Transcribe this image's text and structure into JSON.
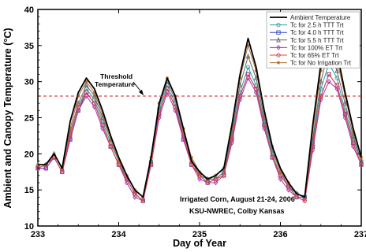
{
  "chart_data": {
    "type": "line",
    "title": "",
    "xlabel": "Day of Year",
    "ylabel": "Ambient and Canopy Temperature (°C)",
    "xlim": [
      233,
      237
    ],
    "ylim": [
      10,
      40
    ],
    "xticks": [
      233,
      234,
      235,
      236,
      237
    ],
    "yticks": [
      10,
      15,
      20,
      25,
      30,
      35,
      40
    ],
    "grid": false,
    "legend_position": "top-right",
    "threshold": {
      "value": 28,
      "label_line1": "Threshold",
      "label_line2": "Temperature",
      "color": "#cc2222"
    },
    "annotations": [
      "Irrigated Corn, August 21-24, 2006",
      "KSU-NWREC, Colby Kansas"
    ],
    "series": [
      {
        "name": "Ambient Temperature",
        "color": "#000000",
        "marker": "none",
        "x": [
          233.0,
          233.1,
          233.2,
          233.3,
          233.4,
          233.5,
          233.6,
          233.7,
          233.8,
          233.9,
          234.0,
          234.1,
          234.2,
          234.3,
          234.4,
          234.5,
          234.6,
          234.7,
          234.8,
          234.9,
          235.0,
          235.1,
          235.2,
          235.3,
          235.4,
          235.5,
          235.6,
          235.7,
          235.8,
          235.9,
          236.0,
          236.1,
          236.2,
          236.3,
          236.4,
          236.5,
          236.6,
          236.7,
          236.8,
          236.9,
          237.0
        ],
        "y": [
          18.5,
          18.5,
          20.0,
          18.0,
          24.5,
          28.5,
          30.5,
          29.0,
          26.0,
          22.5,
          19.5,
          17.0,
          15.0,
          14.0,
          19.5,
          27.0,
          30.5,
          28.0,
          23.5,
          19.0,
          17.5,
          16.5,
          17.0,
          18.0,
          24.0,
          31.0,
          36.0,
          32.0,
          26.0,
          21.0,
          18.0,
          16.0,
          14.5,
          14.0,
          24.0,
          32.5,
          38.0,
          34.0,
          28.5,
          23.5,
          19.5
        ]
      },
      {
        "name": "Tc for 2.5 h TTT Trt",
        "color": "#2aa0a0",
        "marker": "circle",
        "x": [
          233.0,
          233.1,
          233.2,
          233.3,
          233.4,
          233.5,
          233.6,
          233.7,
          233.8,
          233.9,
          234.0,
          234.1,
          234.2,
          234.3,
          234.4,
          234.5,
          234.6,
          234.7,
          234.8,
          234.9,
          235.0,
          235.1,
          235.2,
          235.3,
          235.4,
          235.5,
          235.6,
          235.7,
          235.8,
          235.9,
          236.0,
          236.1,
          236.2,
          236.3,
          236.4,
          236.5,
          236.6,
          236.7,
          236.8,
          236.9,
          237.0
        ],
        "y": [
          18.0,
          18.5,
          19.5,
          17.5,
          22.5,
          26.5,
          29.0,
          27.5,
          24.5,
          21.5,
          19.0,
          16.5,
          14.5,
          13.5,
          19.0,
          26.0,
          29.5,
          27.0,
          22.5,
          18.5,
          17.0,
          16.5,
          16.5,
          17.5,
          22.5,
          28.5,
          32.0,
          29.5,
          24.5,
          20.0,
          17.0,
          15.5,
          14.5,
          14.0,
          21.5,
          29.0,
          32.5,
          30.5,
          26.0,
          22.0,
          19.0
        ]
      },
      {
        "name": "Tc for 4.0 h TTT Trt",
        "color": "#3344cc",
        "marker": "square",
        "x": [
          233.0,
          233.1,
          233.2,
          233.3,
          233.4,
          233.5,
          233.6,
          233.7,
          233.8,
          233.9,
          234.0,
          234.1,
          234.2,
          234.3,
          234.4,
          234.5,
          234.6,
          234.7,
          234.8,
          234.9,
          235.0,
          235.1,
          235.2,
          235.3,
          235.4,
          235.5,
          235.6,
          235.7,
          235.8,
          235.9,
          236.0,
          236.1,
          236.2,
          236.3,
          236.4,
          236.5,
          236.6,
          236.7,
          236.8,
          236.9,
          237.0
        ],
        "y": [
          18.0,
          18.0,
          19.5,
          17.5,
          22.0,
          26.0,
          28.5,
          27.0,
          24.0,
          21.0,
          18.5,
          16.5,
          14.5,
          13.5,
          18.5,
          25.5,
          29.0,
          26.5,
          22.0,
          18.5,
          17.0,
          16.0,
          16.5,
          17.0,
          22.0,
          28.0,
          31.0,
          29.0,
          24.0,
          19.5,
          17.0,
          15.5,
          14.0,
          14.0,
          21.0,
          28.0,
          31.0,
          29.5,
          25.5,
          21.5,
          18.5
        ]
      },
      {
        "name": "Tc for 5.5 h TTT Trt",
        "color": "#666666",
        "marker": "triangle",
        "x": [
          233.0,
          233.1,
          233.2,
          233.3,
          233.4,
          233.5,
          233.6,
          233.7,
          233.8,
          233.9,
          234.0,
          234.1,
          234.2,
          234.3,
          234.4,
          234.5,
          234.6,
          234.7,
          234.8,
          234.9,
          235.0,
          235.1,
          235.2,
          235.3,
          235.4,
          235.5,
          235.6,
          235.7,
          235.8,
          235.9,
          236.0,
          236.1,
          236.2,
          236.3,
          236.4,
          236.5,
          236.6,
          236.7,
          236.8,
          236.9,
          237.0
        ],
        "y": [
          18.5,
          18.5,
          20.0,
          18.0,
          23.0,
          27.0,
          29.5,
          28.0,
          25.0,
          22.0,
          19.0,
          16.5,
          14.5,
          13.5,
          19.0,
          26.5,
          30.0,
          27.5,
          23.0,
          19.0,
          17.0,
          16.5,
          16.5,
          17.5,
          23.0,
          29.5,
          33.5,
          30.5,
          25.0,
          20.5,
          17.5,
          15.5,
          14.5,
          14.0,
          22.0,
          30.0,
          34.5,
          31.5,
          27.0,
          22.5,
          19.0
        ]
      },
      {
        "name": "Tc for 100% ET Trt",
        "color": "#aa33aa",
        "marker": "diamond",
        "x": [
          233.0,
          233.1,
          233.2,
          233.3,
          233.4,
          233.5,
          233.6,
          233.7,
          233.8,
          233.9,
          234.0,
          234.1,
          234.2,
          234.3,
          234.4,
          234.5,
          234.6,
          234.7,
          234.8,
          234.9,
          235.0,
          235.1,
          235.2,
          235.3,
          235.4,
          235.5,
          235.6,
          235.7,
          235.8,
          235.9,
          236.0,
          236.1,
          236.2,
          236.3,
          236.4,
          236.5,
          236.6,
          236.7,
          236.8,
          236.9,
          237.0
        ],
        "y": [
          18.0,
          18.0,
          19.5,
          17.5,
          22.0,
          26.0,
          28.0,
          26.5,
          23.5,
          21.0,
          18.5,
          16.0,
          14.0,
          13.5,
          18.5,
          25.0,
          28.5,
          26.0,
          22.0,
          18.5,
          16.5,
          16.0,
          16.0,
          17.0,
          21.5,
          27.5,
          30.5,
          28.5,
          23.5,
          19.5,
          16.5,
          15.0,
          14.0,
          13.5,
          20.5,
          27.5,
          30.0,
          29.0,
          25.0,
          21.0,
          18.5
        ]
      },
      {
        "name": "Tc for 65% ET Trt",
        "color": "#dd4444",
        "marker": "circle",
        "x": [
          233.0,
          233.1,
          233.2,
          233.3,
          233.4,
          233.5,
          233.6,
          233.7,
          233.8,
          233.9,
          234.0,
          234.1,
          234.2,
          234.3,
          234.4,
          234.5,
          234.6,
          234.7,
          234.8,
          234.9,
          235.0,
          235.1,
          235.2,
          235.3,
          235.4,
          235.5,
          235.6,
          235.7,
          235.8,
          235.9,
          236.0,
          236.1,
          236.2,
          236.3,
          236.4,
          236.5,
          236.6,
          236.7,
          236.8,
          236.9,
          237.0
        ],
        "y": [
          18.0,
          18.5,
          19.5,
          17.5,
          22.5,
          26.5,
          28.5,
          27.0,
          24.0,
          21.0,
          18.5,
          16.5,
          14.5,
          13.5,
          18.5,
          25.5,
          29.0,
          26.5,
          22.5,
          18.5,
          17.0,
          16.0,
          16.5,
          17.0,
          22.0,
          28.0,
          31.0,
          29.0,
          24.0,
          19.5,
          17.0,
          15.5,
          14.0,
          13.5,
          21.0,
          28.0,
          31.0,
          29.5,
          25.5,
          21.5,
          18.5
        ]
      },
      {
        "name": "Tc for No Irrigation Trt",
        "color": "#b07030",
        "marker": "star",
        "x": [
          233.0,
          233.1,
          233.2,
          233.3,
          233.4,
          233.5,
          233.6,
          233.7,
          233.8,
          233.9,
          234.0,
          234.1,
          234.2,
          234.3,
          234.4,
          234.5,
          234.6,
          234.7,
          234.8,
          234.9,
          235.0,
          235.1,
          235.2,
          235.3,
          235.4,
          235.5,
          235.6,
          235.7,
          235.8,
          235.9,
          236.0,
          236.1,
          236.2,
          236.3,
          236.4,
          236.5,
          236.6,
          236.7,
          236.8,
          236.9,
          237.0
        ],
        "y": [
          18.5,
          18.5,
          20.0,
          18.0,
          23.5,
          28.0,
          30.0,
          28.5,
          25.5,
          22.0,
          19.0,
          17.0,
          15.0,
          14.0,
          19.5,
          27.0,
          30.5,
          28.0,
          23.5,
          19.5,
          17.5,
          16.5,
          17.0,
          18.0,
          23.5,
          30.5,
          35.0,
          31.5,
          25.5,
          21.0,
          17.5,
          16.0,
          14.5,
          14.0,
          23.0,
          31.5,
          36.5,
          33.0,
          28.0,
          23.0,
          19.5
        ]
      }
    ]
  }
}
